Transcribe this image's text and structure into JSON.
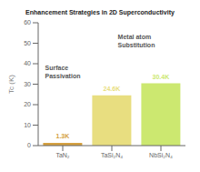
{
  "chart_data": {
    "type": "bar",
    "title": "Enhancement Strategies in 2D Superconductivity",
    "categories": [
      "TaN₂",
      "TaSi₂N₄",
      "NbSi₂N₄"
    ],
    "values": [
      1.3,
      24.6,
      30.4
    ],
    "value_labels": [
      "1.3K",
      "24.6K",
      "30.4K"
    ],
    "data_labels": true,
    "colors": [
      "#d4a040",
      "#e8de80",
      "#cce870"
    ],
    "ylabel": "Tc (K)",
    "ylim": [
      0,
      60
    ],
    "yticks": [
      0,
      10,
      20,
      30,
      40,
      50,
      60
    ],
    "grid": false,
    "annotations": [
      "Surface",
      "Passivation",
      "Metal atom",
      "Substitution"
    ]
  }
}
